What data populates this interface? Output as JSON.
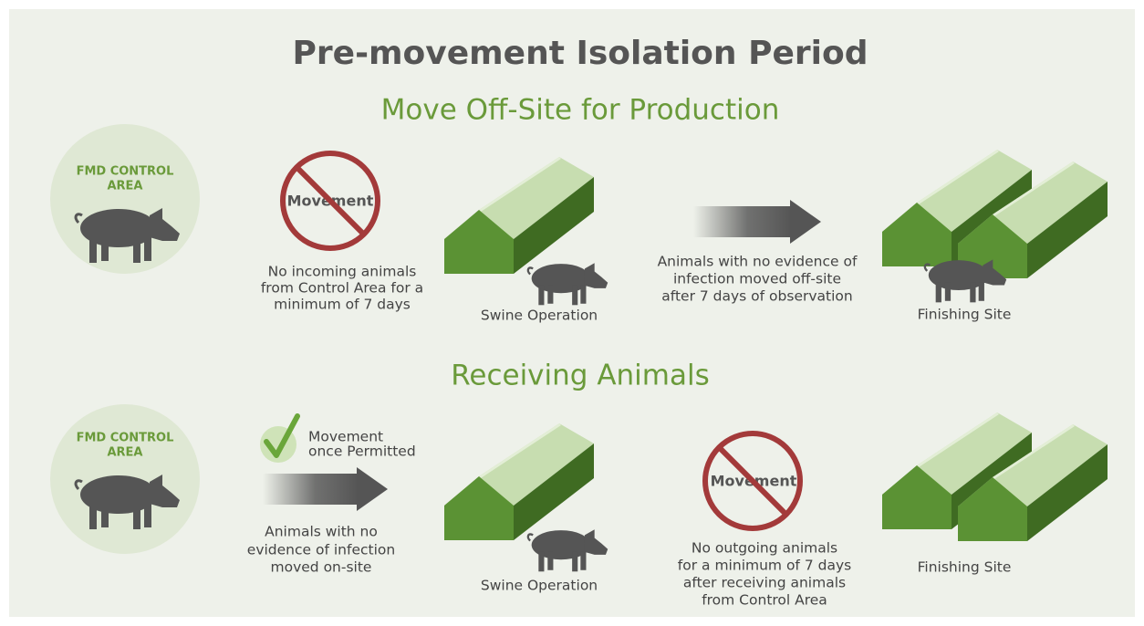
{
  "title": "Pre-movement Isolation Period",
  "sections": [
    {
      "heading": "Move Off-Site for Production",
      "control_area": [
        "FMD CONTROL",
        "AREA"
      ],
      "sign_label": "Movement",
      "sign_note": [
        "No incoming animals",
        "from Control Area for a",
        "minimum of 7 days"
      ],
      "origin_label": "Swine Operation",
      "arrow_note": [
        "Animals with no evidence of",
        "infection moved off-site",
        "after 7 days of observation"
      ],
      "destination_label": "Finishing Site"
    },
    {
      "heading": "Receiving Animals",
      "control_area": [
        "FMD CONTROL",
        "AREA"
      ],
      "check_label": [
        "Movement",
        "once Permitted"
      ],
      "arrow_note": [
        "Animals with no",
        "evidence of infection",
        "moved on-site"
      ],
      "origin_label": "Swine Operation",
      "sign_label": "Movement",
      "sign_note": [
        "No outgoing animals",
        "for a minimum of 7 days",
        "after receiving animals",
        "from Control Area"
      ],
      "destination_label": "Finishing Site"
    }
  ]
}
